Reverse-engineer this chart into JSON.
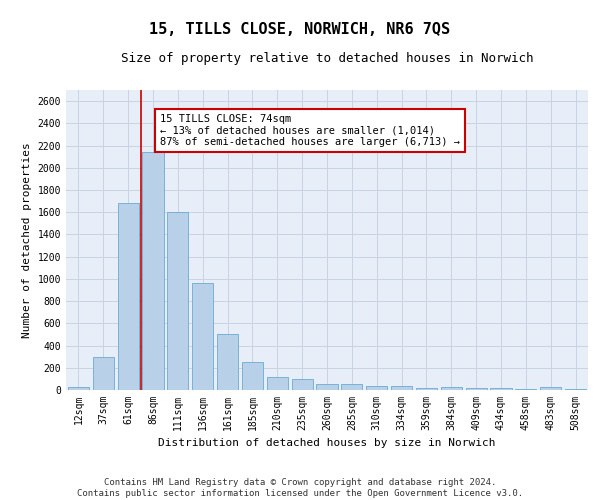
{
  "title": "15, TILLS CLOSE, NORWICH, NR6 7QS",
  "subtitle": "Size of property relative to detached houses in Norwich",
  "xlabel": "Distribution of detached houses by size in Norwich",
  "ylabel": "Number of detached properties",
  "categories": [
    "12sqm",
    "37sqm",
    "61sqm",
    "86sqm",
    "111sqm",
    "136sqm",
    "161sqm",
    "185sqm",
    "210sqm",
    "235sqm",
    "260sqm",
    "285sqm",
    "310sqm",
    "334sqm",
    "359sqm",
    "384sqm",
    "409sqm",
    "434sqm",
    "458sqm",
    "483sqm",
    "508sqm"
  ],
  "values": [
    25,
    300,
    1680,
    2140,
    1600,
    960,
    500,
    250,
    120,
    100,
    50,
    50,
    35,
    35,
    20,
    30,
    20,
    20,
    5,
    30,
    5
  ],
  "bar_color": "#b8d0e8",
  "bar_edge_color": "#6aaad4",
  "grid_color": "#c8d4e4",
  "bg_color": "#e8eef8",
  "annotation_text": "15 TILLS CLOSE: 74sqm\n← 13% of detached houses are smaller (1,014)\n87% of semi-detached houses are larger (6,713) →",
  "annotation_box_color": "#cc0000",
  "vline_color": "#cc0000",
  "ylim": [
    0,
    2700
  ],
  "yticks": [
    0,
    200,
    400,
    600,
    800,
    1000,
    1200,
    1400,
    1600,
    1800,
    2000,
    2200,
    2400,
    2600
  ],
  "footer_line1": "Contains HM Land Registry data © Crown copyright and database right 2024.",
  "footer_line2": "Contains public sector information licensed under the Open Government Licence v3.0.",
  "title_fontsize": 11,
  "subtitle_fontsize": 9,
  "axis_label_fontsize": 8,
  "tick_fontsize": 7,
  "footer_fontsize": 6.5,
  "annotation_fontsize": 7.5
}
